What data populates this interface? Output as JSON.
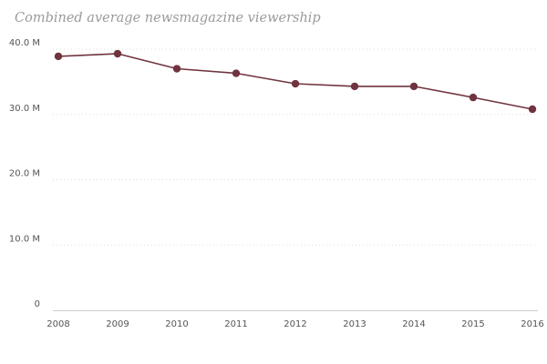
{
  "chart_data": {
    "type": "line",
    "title": "Combined average newsmagazine viewership",
    "xlabel": "",
    "ylabel": "",
    "x": [
      "2008",
      "2009",
      "2010",
      "2011",
      "2012",
      "2013",
      "2014",
      "2015",
      "2016"
    ],
    "series": [
      {
        "values": [
          38.9,
          39.3,
          37.0,
          36.3,
          34.7,
          34.3,
          34.3,
          32.6,
          30.8
        ]
      }
    ],
    "ylim": [
      0,
      40
    ],
    "yticks": [
      0,
      10,
      20,
      30,
      40
    ],
    "ytick_labels": [
      "0",
      "10.0 M",
      "20.0 M",
      "30.0 M",
      "40.0 M"
    ],
    "grid": true,
    "legend": "none",
    "colors": {
      "line": "#70343f",
      "marker": "#70343f",
      "grid": "#dcdcdc",
      "axis": "#cccccc",
      "title": "#9a9a9a",
      "tick_text": "#555555"
    }
  }
}
